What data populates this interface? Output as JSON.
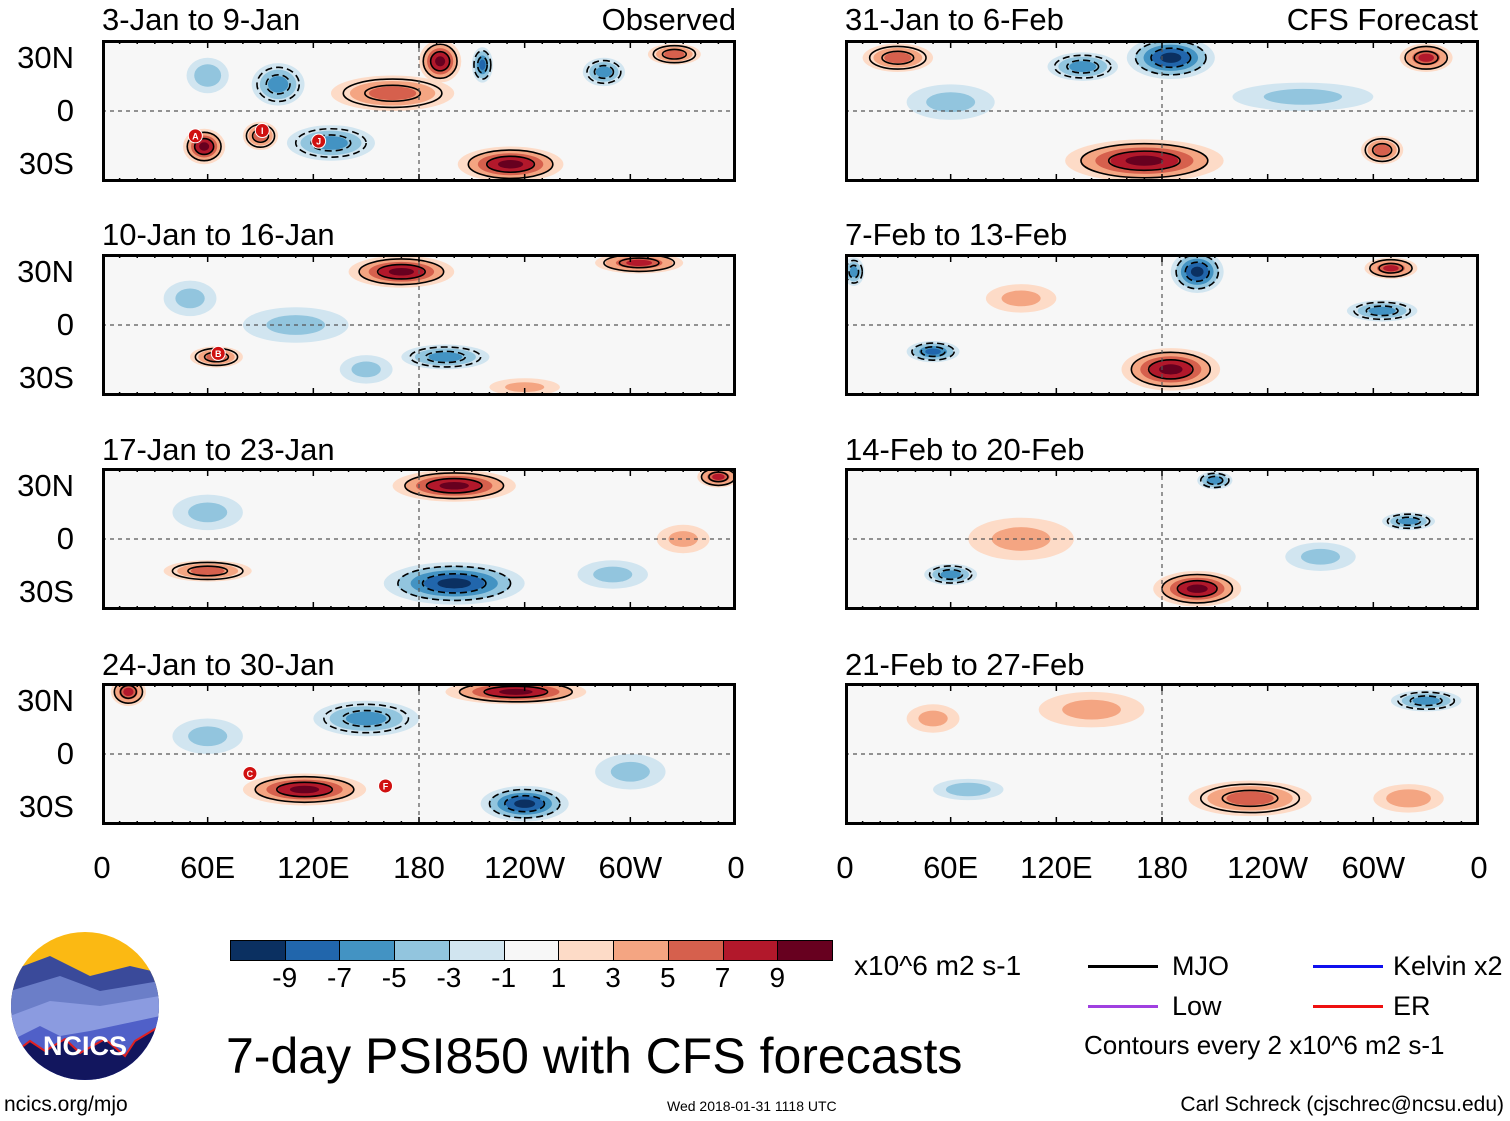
{
  "figure": {
    "title": "7-day PSI850 with CFS forecasts",
    "timestamp": "Wed 2018-01-31 1118 UTC",
    "author": "Carl Schreck (cjschrec@ncsu.edu)",
    "site": "ncics.org/mjo",
    "logo_text": "NCICS",
    "observed_label": "Observed",
    "forecast_label": "CFS Forecast"
  },
  "axes": {
    "lat_labels": [
      "30N",
      "0",
      "30S"
    ],
    "lon_labels": [
      "0",
      "60E",
      "120E",
      "180",
      "120W",
      "60W",
      "0"
    ],
    "lon_range": [
      0,
      360
    ],
    "lat_range": [
      -40,
      40
    ]
  },
  "colorbar": {
    "unit": "x10^6 m2 s-1",
    "labels": [
      "-9",
      "-7",
      "-5",
      "-3",
      "-1",
      "1",
      "3",
      "5",
      "7",
      "9"
    ],
    "colors": [
      "#0b3061",
      "#2166ac",
      "#4393c3",
      "#92c5de",
      "#d1e5f0",
      "#f7f7f7",
      "#fddbc7",
      "#f4a582",
      "#d6604d",
      "#b2182b",
      "#67001f"
    ]
  },
  "legend": {
    "items": [
      {
        "label": "MJO",
        "color": "#000000"
      },
      {
        "label": "Kelvin x2",
        "color": "#1010ee"
      },
      {
        "label": "Low",
        "color": "#a040e0"
      },
      {
        "label": "ER",
        "color": "#ee1010"
      }
    ],
    "contour_note": "Contours every 2 x10^6 m2 s-1"
  },
  "panels": [
    {
      "title": "3-Jan to 9-Jan",
      "kind": "observed",
      "features": [
        [
          58,
          -20,
          9,
          12,
          10
        ],
        [
          90,
          -14,
          5,
          10,
          8
        ],
        [
          100,
          15,
          -5,
          15,
          12
        ],
        [
          60,
          20,
          -4,
          12,
          10
        ],
        [
          165,
          10,
          5,
          35,
          10
        ],
        [
          192,
          28,
          9,
          12,
          12
        ],
        [
          216,
          26,
          -7,
          6,
          10
        ],
        [
          232,
          -30,
          9,
          30,
          10
        ],
        [
          130,
          -18,
          -5,
          25,
          10
        ],
        [
          285,
          22,
          -5,
          12,
          8
        ],
        [
          325,
          32,
          5,
          15,
          6
        ]
      ],
      "storms": [
        {
          "id": "A",
          "lon": 53,
          "lat": -14
        },
        {
          "id": "I",
          "lon": 91,
          "lat": -11
        },
        {
          "id": "J",
          "lon": 123,
          "lat": -17
        }
      ]
    },
    {
      "title": "10-Jan to 16-Jan",
      "kind": "observed",
      "features": [
        [
          170,
          30,
          9,
          30,
          9
        ],
        [
          305,
          35,
          7,
          25,
          6
        ],
        [
          65,
          -18,
          5,
          15,
          6
        ],
        [
          195,
          -18,
          -5,
          25,
          7
        ],
        [
          110,
          0,
          -3,
          30,
          10
        ],
        [
          240,
          -35,
          3,
          20,
          5
        ],
        [
          50,
          15,
          -3,
          15,
          10
        ],
        [
          150,
          -25,
          -3,
          15,
          8
        ]
      ],
      "storms": [
        {
          "id": "B",
          "lon": 66,
          "lat": -16
        }
      ]
    },
    {
      "title": "17-Jan to 23-Jan",
      "kind": "observed",
      "features": [
        [
          200,
          30,
          9,
          35,
          9
        ],
        [
          350,
          35,
          7,
          12,
          6
        ],
        [
          60,
          -18,
          5,
          25,
          6
        ],
        [
          200,
          -25,
          -9,
          40,
          12
        ],
        [
          60,
          15,
          -3,
          20,
          10
        ],
        [
          330,
          0,
          3,
          15,
          8
        ],
        [
          290,
          -20,
          -3,
          20,
          8
        ]
      ],
      "storms": []
    },
    {
      "title": "24-Jan to 30-Jan",
      "kind": "observed",
      "features": [
        [
          235,
          35,
          9,
          40,
          7
        ],
        [
          115,
          -20,
          9,
          35,
          9
        ],
        [
          15,
          35,
          7,
          10,
          8
        ],
        [
          240,
          -28,
          -9,
          25,
          10
        ],
        [
          150,
          20,
          -5,
          30,
          10
        ],
        [
          300,
          -10,
          -3,
          20,
          10
        ],
        [
          60,
          10,
          -3,
          20,
          10
        ]
      ],
      "storms": [
        {
          "id": "C",
          "lon": 84,
          "lat": -11
        },
        {
          "id": "F",
          "lon": 161,
          "lat": -18
        }
      ]
    },
    {
      "title": "31-Jan to 6-Feb",
      "kind": "forecast",
      "features": [
        [
          185,
          30,
          -9,
          25,
          12
        ],
        [
          135,
          25,
          -5,
          20,
          8
        ],
        [
          170,
          -28,
          9,
          45,
          12
        ],
        [
          30,
          30,
          5,
          20,
          8
        ],
        [
          330,
          30,
          7,
          15,
          8
        ],
        [
          305,
          -22,
          5,
          12,
          8
        ],
        [
          260,
          8,
          -3,
          40,
          8
        ],
        [
          60,
          5,
          -3,
          25,
          10
        ]
      ],
      "storms": []
    },
    {
      "title": "7-Feb to 13-Feb",
      "kind": "forecast",
      "features": [
        [
          200,
          30,
          -9,
          15,
          12
        ],
        [
          185,
          -25,
          9,
          28,
          12
        ],
        [
          310,
          32,
          7,
          15,
          6
        ],
        [
          50,
          -15,
          -7,
          15,
          6
        ],
        [
          305,
          8,
          -5,
          20,
          6
        ],
        [
          100,
          15,
          3,
          20,
          8
        ],
        [
          5,
          30,
          -5,
          6,
          8
        ]
      ],
      "storms": []
    },
    {
      "title": "14-Feb to 20-Feb",
      "kind": "forecast",
      "features": [
        [
          200,
          -28,
          9,
          25,
          10
        ],
        [
          210,
          33,
          -6,
          10,
          5
        ],
        [
          320,
          10,
          -5,
          15,
          5
        ],
        [
          60,
          -20,
          -5,
          15,
          6
        ],
        [
          100,
          0,
          3,
          30,
          12
        ],
        [
          270,
          -10,
          -3,
          20,
          8
        ]
      ],
      "storms": []
    },
    {
      "title": "21-Feb to 27-Feb",
      "kind": "forecast",
      "features": [
        [
          140,
          25,
          3,
          30,
          10
        ],
        [
          330,
          30,
          -5,
          20,
          6
        ],
        [
          70,
          -20,
          -4,
          20,
          6
        ],
        [
          230,
          -25,
          5,
          35,
          10
        ],
        [
          320,
          -25,
          4,
          20,
          8
        ],
        [
          50,
          20,
          3,
          15,
          8
        ]
      ],
      "storms": []
    }
  ]
}
